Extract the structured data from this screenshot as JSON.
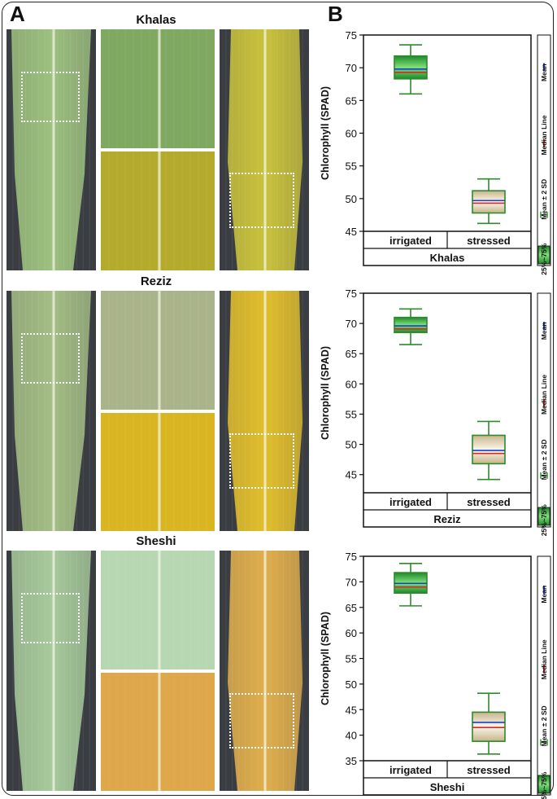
{
  "panel_a": {
    "label": "A",
    "photos": [
      {
        "cultivar": "Khalas",
        "leaf_color_irrigated": "#9cc07e",
        "leaf_color_stressed": "#c9c23c",
        "zoom_irrigated": "#7fa960",
        "zoom_stressed": "#b4ab2d"
      },
      {
        "cultivar": "Reziz",
        "leaf_color_irrigated": "#a3bd84",
        "leaf_color_stressed": "#e2be2c",
        "zoom_irrigated": "#aab48a",
        "zoom_stressed": "#d9b522"
      },
      {
        "cultivar": "Sheshi",
        "leaf_color_irrigated": "#a6c99a",
        "leaf_color_stressed": "#e0ae4c",
        "zoom_irrigated": "#b7d7b2",
        "zoom_stressed": "#dda74a"
      }
    ]
  },
  "panel_b": {
    "label": "B"
  },
  "legend": {
    "mean": "Mean",
    "median": "Median Line",
    "sd": "Mean ± 2 SD",
    "iqr": "25%~75%",
    "mean_color": "#1a3fcf",
    "median_color": "#d22a2a",
    "box_color": "#2d8a2d"
  },
  "chart_data": [
    {
      "type": "box",
      "title": "Khalas",
      "ylabel": "Chlorophyll (SPAD)",
      "ylim": [
        45,
        75
      ],
      "yticks": [
        "45",
        "50",
        "55",
        "60",
        "65",
        "70",
        "75"
      ],
      "categories": [
        "irrigated",
        "stressed"
      ],
      "boxes": [
        {
          "category": "irrigated",
          "whisker_low": 66,
          "q1": 68.3,
          "median": 69.3,
          "mean": 69.8,
          "q3": 71.8,
          "whisker_high": 73.5
        },
        {
          "category": "stressed",
          "whisker_low": 46.2,
          "q1": 47.8,
          "median": 49.3,
          "mean": 49.7,
          "q3": 51.2,
          "whisker_high": 53
        }
      ]
    },
    {
      "type": "box",
      "title": "Reziz",
      "ylabel": "Chlorophyll (SPAD)",
      "ylim": [
        42,
        75
      ],
      "yticks": [
        "45",
        "50",
        "55",
        "60",
        "65",
        "70",
        "75"
      ],
      "categories": [
        "irrigated",
        "stressed"
      ],
      "boxes": [
        {
          "category": "irrigated",
          "whisker_low": 66.5,
          "q1": 68.5,
          "median": 69.1,
          "mean": 69.6,
          "q3": 71,
          "whisker_high": 72.4
        },
        {
          "category": "stressed",
          "whisker_low": 44.2,
          "q1": 46.8,
          "median": 48.5,
          "mean": 49,
          "q3": 51.5,
          "whisker_high": 53.8
        }
      ]
    },
    {
      "type": "box",
      "title": "Sheshi",
      "ylabel": "Chlorophyll (SPAD)",
      "ylim": [
        35,
        75
      ],
      "yticks": [
        "35",
        "40",
        "45",
        "50",
        "55",
        "60",
        "65",
        "70",
        "75"
      ],
      "categories": [
        "irrigated",
        "stressed"
      ],
      "boxes": [
        {
          "category": "irrigated",
          "whisker_low": 65.3,
          "q1": 67.8,
          "median": 69,
          "mean": 69.7,
          "q3": 71.8,
          "whisker_high": 73.6
        },
        {
          "category": "stressed",
          "whisker_low": 36.3,
          "q1": 38.8,
          "median": 41.5,
          "mean": 42.5,
          "q3": 44.5,
          "whisker_high": 48.2
        }
      ]
    }
  ]
}
